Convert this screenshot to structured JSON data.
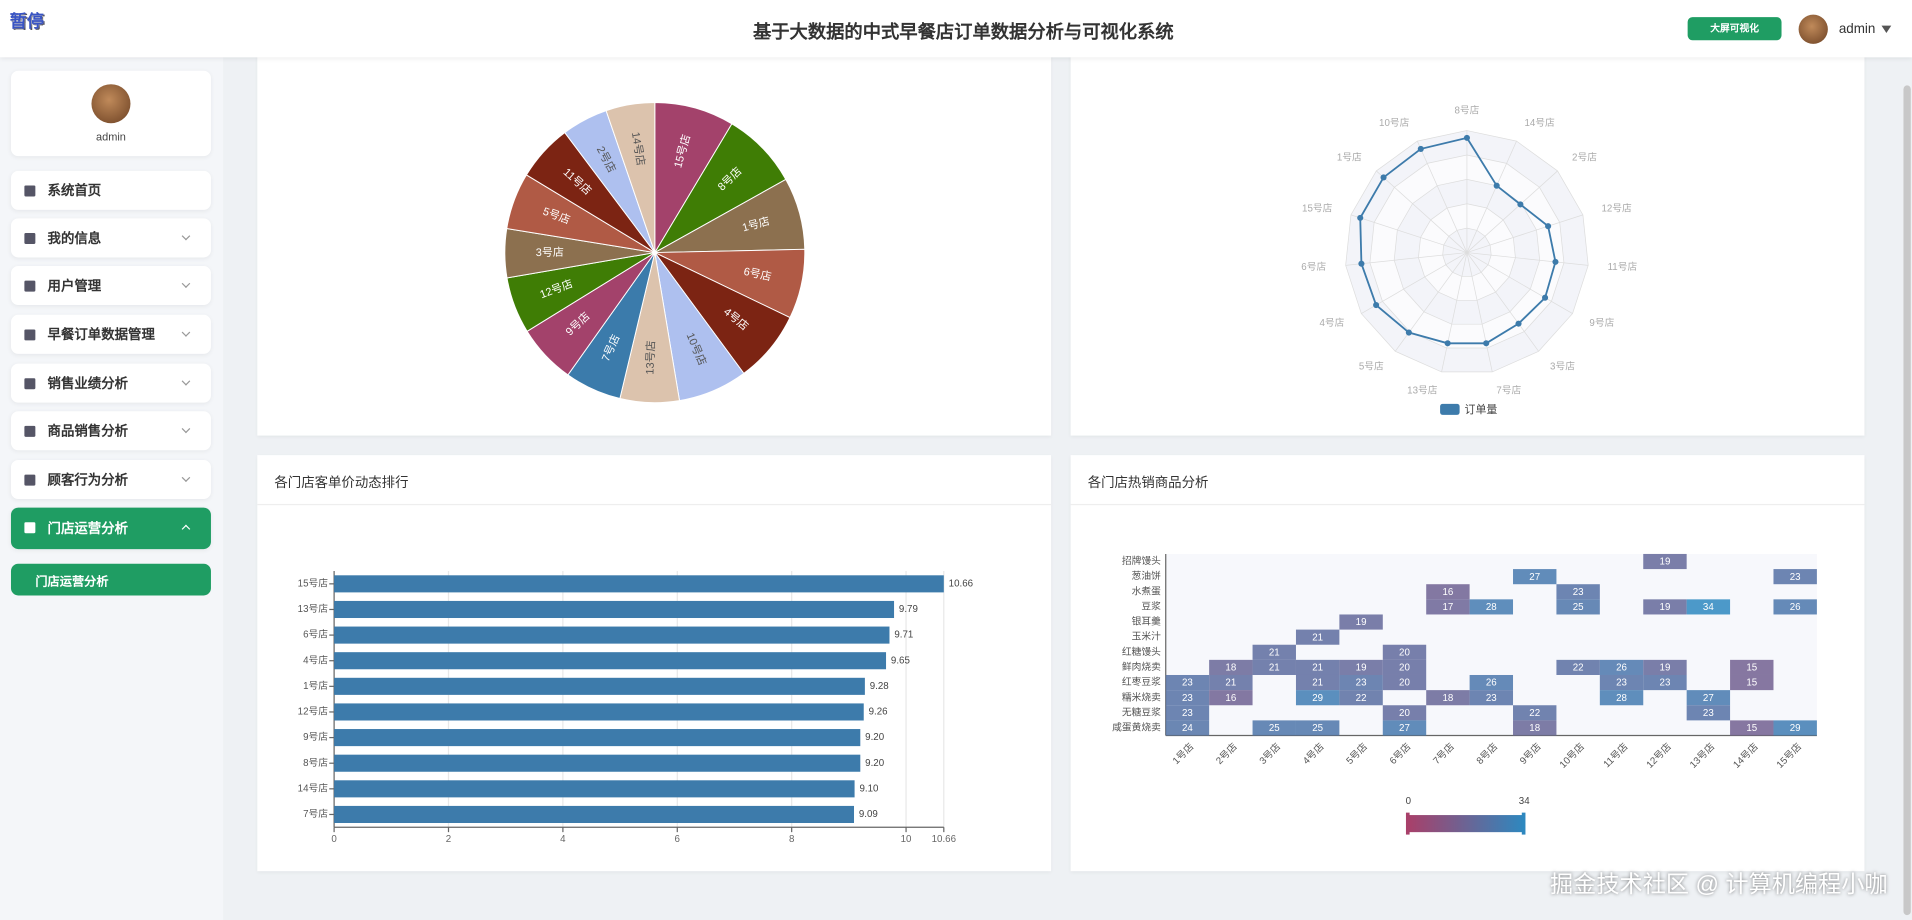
{
  "header": {
    "logo": "暂停",
    "title": "基于大数据的中式早餐店订单数据分析与可视化系统",
    "screen_button": "大屏可视化",
    "user": "admin"
  },
  "sidebar": {
    "profile_name": "admin",
    "menu": [
      "系统首页",
      "我的信息",
      "用户管理",
      "早餐订单数据管理",
      "销售业绩分析",
      "商品销售分析",
      "顾客行为分析",
      "门店运营分析"
    ],
    "active_submenu": "门店运营分析"
  },
  "chart_data": [
    {
      "type": "pie",
      "categories": [
        "15号店",
        "8号店",
        "1号店",
        "6号店",
        "4号店",
        "10号店",
        "13号店",
        "7号店",
        "9号店",
        "12号店",
        "3号店",
        "5号店",
        "11号店",
        "2号店",
        "14号店"
      ],
      "values": [
        31,
        30,
        28,
        27,
        28,
        27,
        23,
        22,
        23,
        22,
        19,
        22,
        22,
        18,
        19
      ],
      "colors": [
        "#a3426b",
        "#3f7d05",
        "#8c704f",
        "#b05a45",
        "#7c2413",
        "#aec0ef",
        "#dcc3ad",
        "#3b7bab"
      ]
    },
    {
      "type": "radar",
      "indicators": [
        "8号店",
        "14号店",
        "2号店",
        "12号店",
        "11号店",
        "9号店",
        "3号店",
        "7号店",
        "13号店",
        "5号店",
        "4号店",
        "6号店",
        "15号店",
        "1号店",
        "10号店"
      ],
      "series": [
        {
          "name": "订单量",
          "color": "#3d7bab",
          "values": [
            94,
            60,
            59,
            70,
            73,
            74,
            72,
            76,
            76,
            81,
            86,
            87,
            92,
            92,
            93
          ]
        }
      ]
    },
    {
      "type": "bar",
      "orientation": "horizontal",
      "title": "各门店客单价动态排行",
      "categories": [
        "7号店",
        "14号店",
        "8号店",
        "9号店",
        "12号店",
        "1号店",
        "4号店",
        "6号店",
        "13号店",
        "15号店"
      ],
      "values": [
        9.09,
        9.1,
        9.2,
        9.2,
        9.26,
        9.28,
        9.65,
        9.71,
        9.79,
        10.66
      ],
      "value_labels": [
        "9.09",
        "9.10",
        "9.20",
        "9.20",
        "9.26",
        "9.28",
        "9.65",
        "9.71",
        "9.79",
        "10.66"
      ],
      "color": "#3d7bab",
      "xlim": [
        0,
        10.66
      ],
      "xticks": [
        0,
        2,
        4,
        6,
        8,
        10,
        10.66
      ],
      "grid": true
    },
    {
      "type": "heatmap",
      "title": "各门店热销商品分析",
      "x_categories": [
        "1号店",
        "2号店",
        "3号店",
        "4号店",
        "5号店",
        "6号店",
        "7号店",
        "8号店",
        "9号店",
        "10号店",
        "11号店",
        "12号店",
        "13号店",
        "14号店",
        "15号店"
      ],
      "y_categories": [
        "招牌馒头",
        "葱油饼",
        "水煮蛋",
        "豆浆",
        "银耳羹",
        "玉米汁",
        "红糖馒头",
        "鲜肉烧卖",
        "红枣豆浆",
        "糯米烧卖",
        "无糖豆浆",
        "咸蛋黄烧卖"
      ],
      "cells": [
        [
          11,
          0,
          19
        ],
        [
          8,
          1,
          27
        ],
        [
          14,
          1,
          23
        ],
        [
          6,
          2,
          16
        ],
        [
          9,
          2,
          23
        ],
        [
          6,
          3,
          17
        ],
        [
          7,
          3,
          28
        ],
        [
          9,
          3,
          25
        ],
        [
          11,
          3,
          19
        ],
        [
          12,
          3,
          34
        ],
        [
          14,
          3,
          26
        ],
        [
          4,
          4,
          19
        ],
        [
          3,
          5,
          21
        ],
        [
          2,
          6,
          21
        ],
        [
          5,
          6,
          20
        ],
        [
          1,
          7,
          18
        ],
        [
          2,
          7,
          21
        ],
        [
          3,
          7,
          21
        ],
        [
          4,
          7,
          19
        ],
        [
          5,
          7,
          20
        ],
        [
          9,
          7,
          22
        ],
        [
          10,
          7,
          26
        ],
        [
          11,
          7,
          19
        ],
        [
          13,
          7,
          15
        ],
        [
          0,
          8,
          23
        ],
        [
          1,
          8,
          21
        ],
        [
          3,
          8,
          21
        ],
        [
          4,
          8,
          23
        ],
        [
          5,
          8,
          20
        ],
        [
          7,
          8,
          26
        ],
        [
          10,
          8,
          23
        ],
        [
          11,
          8,
          23
        ],
        [
          13,
          8,
          15
        ],
        [
          0,
          9,
          23
        ],
        [
          1,
          9,
          16
        ],
        [
          3,
          9,
          29
        ],
        [
          4,
          9,
          22
        ],
        [
          6,
          9,
          18
        ],
        [
          7,
          9,
          23
        ],
        [
          10,
          9,
          28
        ],
        [
          12,
          9,
          27
        ],
        [
          0,
          10,
          23
        ],
        [
          5,
          10,
          20
        ],
        [
          8,
          10,
          22
        ],
        [
          12,
          10,
          23
        ],
        [
          0,
          11,
          24
        ],
        [
          2,
          11,
          25
        ],
        [
          3,
          11,
          25
        ],
        [
          5,
          11,
          27
        ],
        [
          8,
          11,
          18
        ],
        [
          13,
          11,
          15
        ],
        [
          14,
          11,
          29
        ]
      ],
      "visual_map": {
        "min": 0,
        "max": 34,
        "colors": [
          "#a8406a",
          "#2e88bf"
        ]
      }
    }
  ],
  "watermark": "掘金技术社区 @ 计算机编程小咖"
}
